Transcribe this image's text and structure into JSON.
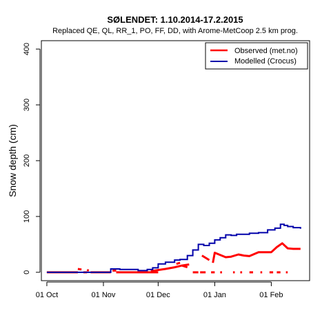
{
  "chart_data": {
    "type": "line",
    "title": "SØLENDET: 1.10.2014-17.2.2015",
    "subtitle": "Replaced QE, QL, RR_1, PO, FF, DD,  with Arome-MetCoop 2.5 km prog.",
    "xlabel": "",
    "ylabel": "Snow depth (cm)",
    "xlim": [
      "2014-09-28",
      "2015-02-22"
    ],
    "ylim": [
      -15,
      415
    ],
    "yticks": [
      0,
      100,
      200,
      300,
      400
    ],
    "xticks": [
      {
        "date": "2014-10-01",
        "label": "01 Oct"
      },
      {
        "date": "2014-11-01",
        "label": "01 Nov"
      },
      {
        "date": "2014-12-01",
        "label": "01 Dec"
      },
      {
        "date": "2015-01-01",
        "label": "01 Jan"
      },
      {
        "date": "2015-02-01",
        "label": "01 Feb"
      }
    ],
    "grid": false,
    "legend": "top-right",
    "series": [
      {
        "name": "Observed (met.no)",
        "color": "#ff0000",
        "style": "thick-segments",
        "segments": [
          {
            "x": [
              "2014-10-01",
              "2014-10-18"
            ],
            "y": [
              0,
              0
            ]
          },
          {
            "x": [
              "2014-10-18",
              "2014-10-20"
            ],
            "y": [
              6,
              5
            ]
          },
          {
            "x": [
              "2014-10-21",
              "2014-10-23"
            ],
            "y": [
              0,
              0
            ]
          },
          {
            "x": [
              "2014-10-23",
              "2014-10-24"
            ],
            "y": [
              4,
              3
            ]
          },
          {
            "x": [
              "2014-10-25",
              "2014-11-05"
            ],
            "y": [
              0,
              0
            ]
          },
          {
            "x": [
              "2014-11-06",
              "2014-11-08"
            ],
            "y": [
              3,
              3
            ]
          },
          {
            "x": [
              "2014-11-08",
              "2014-12-01"
            ],
            "y": [
              0,
              0
            ]
          },
          {
            "x": [
              "2014-11-27",
              "2014-12-05",
              "2014-12-10",
              "2014-12-14",
              "2014-12-17"
            ],
            "y": [
              2,
              6,
              9,
              12,
              9
            ]
          },
          {
            "x": [
              "2014-12-11",
              "2014-12-13"
            ],
            "y": [
              15,
              17
            ]
          },
          {
            "x": [
              "2014-12-14",
              "2014-12-18"
            ],
            "y": [
              12,
              14
            ]
          },
          {
            "x": [
              "2014-12-20",
              "2014-12-23"
            ],
            "y": [
              0,
              0
            ]
          },
          {
            "x": [
              "2014-12-24",
              "2014-12-27"
            ],
            "y": [
              0,
              0
            ]
          },
          {
            "x": [
              "2014-12-25",
              "2014-12-29"
            ],
            "y": [
              30,
              22
            ]
          },
          {
            "x": [
              "2014-12-30",
              "2015-01-01"
            ],
            "y": [
              0,
              0
            ]
          },
          {
            "x": [
              "2014-12-31",
              "2015-01-01",
              "2015-01-07",
              "2015-01-10",
              "2015-01-14",
              "2015-01-17",
              "2015-01-20",
              "2015-01-25",
              "2015-02-01",
              "2015-02-04",
              "2015-02-07",
              "2015-02-10",
              "2015-02-13",
              "2015-02-17"
            ],
            "y": [
              17,
              35,
              27,
              28,
              32,
              30,
              29,
              36,
              36,
              45,
              52,
              43,
              42,
              42
            ]
          },
          {
            "x": [
              "2015-01-04",
              "2015-01-05"
            ],
            "y": [
              0,
              0
            ]
          },
          {
            "x": [
              "2015-01-11",
              "2015-01-12"
            ],
            "y": [
              0,
              0
            ]
          },
          {
            "x": [
              "2015-01-15",
              "2015-01-16"
            ],
            "y": [
              0,
              0
            ]
          },
          {
            "x": [
              "2015-01-20",
              "2015-01-22"
            ],
            "y": [
              0,
              0
            ]
          },
          {
            "x": [
              "2015-01-26",
              "2015-01-27"
            ],
            "y": [
              0,
              0
            ]
          },
          {
            "x": [
              "2015-01-31",
              "2015-02-02"
            ],
            "y": [
              0,
              0
            ]
          },
          {
            "x": [
              "2015-02-04",
              "2015-02-06"
            ],
            "y": [
              0,
              0
            ]
          },
          {
            "x": [
              "2015-02-09",
              "2015-02-10"
            ],
            "y": [
              0,
              0
            ]
          }
        ]
      },
      {
        "name": "Modelled (Crocus)",
        "color": "#0000aa",
        "style": "step",
        "x": [
          "2014-10-01",
          "2014-11-04",
          "2014-11-05",
          "2014-11-10",
          "2014-11-20",
          "2014-11-25",
          "2014-11-28",
          "2014-12-01",
          "2014-12-05",
          "2014-12-10",
          "2014-12-13",
          "2014-12-17",
          "2014-12-20",
          "2014-12-23",
          "2014-12-26",
          "2014-12-29",
          "2015-01-01",
          "2015-01-04",
          "2015-01-07",
          "2015-01-10",
          "2015-01-13",
          "2015-01-16",
          "2015-01-20",
          "2015-01-25",
          "2015-01-30",
          "2015-02-03",
          "2015-02-06",
          "2015-02-08",
          "2015-02-10",
          "2015-02-13",
          "2015-02-17"
        ],
        "y": [
          0,
          0,
          6,
          5,
          3,
          5,
          8,
          15,
          18,
          22,
          23,
          30,
          40,
          50,
          48,
          52,
          58,
          62,
          67,
          66,
          68,
          68,
          70,
          71,
          76,
          79,
          86,
          84,
          82,
          80,
          78
        ]
      }
    ]
  }
}
